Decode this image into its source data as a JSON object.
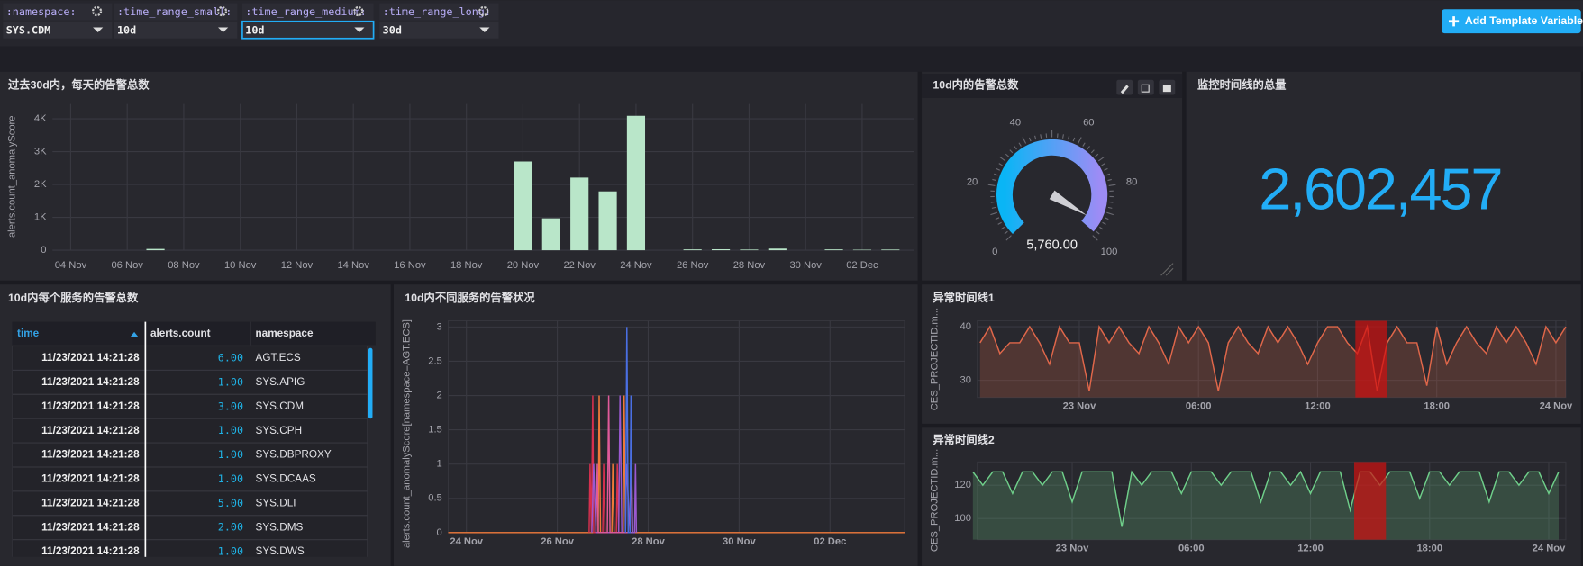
{
  "template_variables": [
    {
      "name": ":namespace:",
      "value": "SYS.CDM"
    },
    {
      "name": ":time_range_small:",
      "value": "10d"
    },
    {
      "name": ":time_range_medium:",
      "value": "10d"
    },
    {
      "name": ":time_range_long:",
      "value": "30d"
    }
  ],
  "add_button": "Add Template Variable",
  "single_stat": {
    "title": "监控时间线的总量",
    "value": "2,602,457"
  },
  "table": {
    "title": "10d内每个服务的告警总数",
    "columns": [
      "time",
      "alerts.count",
      "namespace"
    ],
    "rows": [
      [
        "11/23/2021 14:21:28",
        "6.00",
        "AGT.ECS"
      ],
      [
        "11/23/2021 14:21:28",
        "1.00",
        "SYS.APIG"
      ],
      [
        "11/23/2021 14:21:28",
        "3.00",
        "SYS.CDM"
      ],
      [
        "11/23/2021 14:21:28",
        "1.00",
        "SYS.CPH"
      ],
      [
        "11/23/2021 14:21:28",
        "1.00",
        "SYS.DBPROXY"
      ],
      [
        "11/23/2021 14:21:28",
        "1.00",
        "SYS.DCAAS"
      ],
      [
        "11/23/2021 14:21:28",
        "5.00",
        "SYS.DLI"
      ],
      [
        "11/23/2021 14:21:28",
        "2.00",
        "SYS.DMS"
      ],
      [
        "11/23/2021 14:21:28",
        "1.00",
        "SYS.DWS"
      ]
    ]
  },
  "chart_data": [
    {
      "type": "bar",
      "title": "过去30d内，每天的告警总数",
      "y_label": "alerts.count_anomalyScore",
      "color": "#b9e6c9",
      "categories": [
        null,
        "04 Nov",
        null,
        "06 Nov",
        null,
        "08 Nov",
        null,
        "10 Nov",
        null,
        "12 Nov",
        null,
        "14 Nov",
        null,
        "16 Nov",
        null,
        "18 Nov",
        null,
        "20 Nov",
        null,
        "22 Nov",
        null,
        "24 Nov",
        null,
        "26 Nov",
        null,
        "28 Nov",
        null,
        "30 Nov",
        null,
        "02 Dec",
        null
      ],
      "values": [
        0,
        0,
        0,
        0,
        40,
        0,
        0,
        0,
        0,
        0,
        0,
        0,
        0,
        0,
        0,
        0,
        0,
        2700,
        970,
        2210,
        1790,
        4090,
        0,
        25,
        30,
        20,
        50,
        0,
        25,
        15,
        20
      ],
      "ylim": [
        0,
        4450
      ],
      "yticks": [
        0,
        {
          "value": 1000,
          "label": "1K"
        },
        {
          "value": 2000,
          "label": "2K"
        },
        {
          "value": 3000,
          "label": "3K"
        },
        {
          "value": 4000,
          "label": "4K"
        }
      ],
      "grid": true
    },
    {
      "type": "gauge",
      "title": "10d内的告警总数",
      "range": [
        0,
        100
      ],
      "ticks": [
        0,
        20,
        40,
        60,
        80,
        100
      ],
      "values": [
        5760
      ],
      "value_labels": [
        "5,760.00"
      ]
    },
    {
      "type": "line",
      "title": "10d内不同服务的告警状况",
      "y_label": "alerts.count_anomalyScore[namespace=AGT.ECS]",
      "xlim": [
        -0.4,
        9.64
      ],
      "ylim": [
        0,
        3.09
      ],
      "xticks": [
        {
          "value": 0,
          "label": "24 Nov"
        },
        {
          "value": 2,
          "label": "26 Nov"
        },
        {
          "value": 4,
          "label": "28 Nov"
        },
        {
          "value": 6,
          "label": "30 Nov"
        },
        {
          "value": 8,
          "label": "02 Dec"
        }
      ],
      "yticks": [
        0,
        0.5,
        1,
        1.5,
        2,
        2.5,
        3
      ],
      "grid": true,
      "series": [
        {
          "color": "#f07a3a",
          "x": [
            -0.4,
            2.9,
            2.92,
            2.95,
            3.2,
            3.22,
            3.25,
            3.45,
            3.47,
            3.5,
            9.64
          ],
          "values": [
            0,
            0,
            2,
            0,
            0,
            1,
            0,
            0,
            2,
            0,
            0
          ]
        },
        {
          "color": "#d6304f",
          "x": [
            2.7,
            2.72,
            2.75,
            2.78,
            2.8,
            3.0,
            3.02,
            3.05,
            3.3,
            3.32,
            3.35
          ],
          "values": [
            0,
            1,
            0,
            2,
            0,
            0,
            1,
            0,
            0,
            1,
            0
          ]
        },
        {
          "color": "#9b59d0",
          "x": [
            2.76,
            2.8,
            2.85,
            3.35,
            3.38,
            3.42,
            3.5,
            3.52,
            3.6,
            3.7,
            3.72,
            3.74
          ],
          "values": [
            0,
            1,
            0,
            0,
            2,
            0,
            0,
            1,
            0,
            0,
            1,
            0
          ]
        },
        {
          "color": "#e05a9a",
          "x": [
            2.85,
            2.88,
            2.9,
            3.1,
            3.13,
            3.16,
            3.6,
            3.63,
            3.66
          ],
          "values": [
            0,
            1,
            0,
            0,
            2,
            0,
            0,
            1,
            0
          ]
        },
        {
          "color": "#4a6fe3",
          "x": [
            3.5,
            3.53,
            3.56,
            3.6,
            3.62,
            3.65
          ],
          "values": [
            0,
            3,
            0,
            0,
            2,
            0
          ]
        }
      ]
    },
    {
      "type": "line",
      "title": "异常时间线1",
      "y_label": "CES_PROJECTID.m...",
      "area": true,
      "xlim": [
        -5.14,
        24.5
      ],
      "ylim": [
        26.8,
        41.1
      ],
      "xticks": [
        {
          "value": 0,
          "label": "23 Nov"
        },
        {
          "value": 6,
          "label": "06:00"
        },
        {
          "value": 12,
          "label": "12:00"
        },
        {
          "value": 18,
          "label": "18:00"
        },
        {
          "value": 24,
          "label": "24 Nov"
        }
      ],
      "yticks": [
        30,
        40
      ],
      "grid": true,
      "highlight": [
        [
          13.9,
          15.5
        ]
      ],
      "x": [
        -5,
        -4.5,
        -4,
        -3.5,
        -3,
        -2.5,
        -2,
        -1.5,
        -1,
        -0.5,
        0,
        0.5,
        1,
        1.5,
        2,
        2.5,
        3,
        3.5,
        4,
        4.5,
        5,
        5.5,
        6,
        6.5,
        7,
        7.5,
        8,
        8.5,
        9,
        9.5,
        10,
        10.5,
        11,
        11.5,
        12,
        12.5,
        13,
        13.5,
        14,
        14.5,
        15,
        15.5,
        16,
        16.5,
        17,
        17.5,
        18,
        18.5,
        19,
        19.5,
        20,
        20.5,
        21,
        21.5,
        22,
        22.5,
        23,
        23.5,
        24,
        24.5
      ],
      "series": [
        {
          "color": "#e0674a",
          "values": [
            37,
            40,
            35,
            37,
            37,
            40,
            37,
            33,
            40,
            37,
            37,
            28,
            40,
            37,
            40,
            37,
            35,
            40,
            37,
            33,
            40,
            37,
            40,
            37,
            28,
            37,
            40,
            37,
            35,
            40,
            37,
            40,
            37,
            33,
            37,
            40,
            40,
            37,
            35,
            40,
            28,
            37,
            40,
            37,
            37,
            29,
            40,
            33,
            37,
            40,
            37,
            35,
            40,
            37,
            40,
            37,
            33,
            40,
            37,
            40
          ]
        }
      ]
    },
    {
      "type": "line",
      "title": "异常时间线2",
      "y_label": "CES_PROJECTID.m...",
      "area": true,
      "xlim": [
        -4.78,
        24.86
      ],
      "ylim": [
        87.3,
        133.9
      ],
      "xticks": [
        {
          "value": 0,
          "label": "23 Nov"
        },
        {
          "value": 6,
          "label": "06:00"
        },
        {
          "value": 12,
          "label": "12:00"
        },
        {
          "value": 18,
          "label": "18:00"
        },
        {
          "value": 24,
          "label": "24 Nov"
        }
      ],
      "yticks": [
        100,
        120
      ],
      "grid": true,
      "highlight": [
        [
          14.2,
          15.8
        ]
      ],
      "x": [
        -5,
        -4.5,
        -4,
        -3.5,
        -3,
        -2.5,
        -2,
        -1.5,
        -1,
        -0.5,
        0,
        0.5,
        1,
        1.5,
        2,
        2.5,
        3,
        3.5,
        4,
        4.5,
        5,
        5.5,
        6,
        6.5,
        7,
        7.5,
        8,
        8.5,
        9,
        9.5,
        10,
        10.5,
        11,
        11.5,
        12,
        12.5,
        13,
        13.5,
        14,
        14.5,
        15,
        15.5,
        16,
        16.5,
        17,
        17.5,
        18,
        18.5,
        19,
        19.5,
        20,
        20.5,
        21,
        21.5,
        22,
        22.5,
        23,
        23.5,
        24,
        24.5
      ],
      "series": [
        {
          "color": "#6fcf8a",
          "values": [
            128,
            120,
            128,
            128,
            115,
            128,
            128,
            120,
            128,
            128,
            110,
            128,
            128,
            128,
            128,
            95,
            128,
            120,
            128,
            128,
            128,
            115,
            128,
            128,
            128,
            120,
            128,
            128,
            128,
            110,
            128,
            128,
            120,
            128,
            115,
            128,
            128,
            128,
            105,
            128,
            128,
            120,
            128,
            128,
            128,
            112,
            128,
            128,
            120,
            128,
            128,
            128,
            110,
            128,
            128,
            120,
            128,
            128,
            115,
            128
          ]
        }
      ]
    }
  ]
}
